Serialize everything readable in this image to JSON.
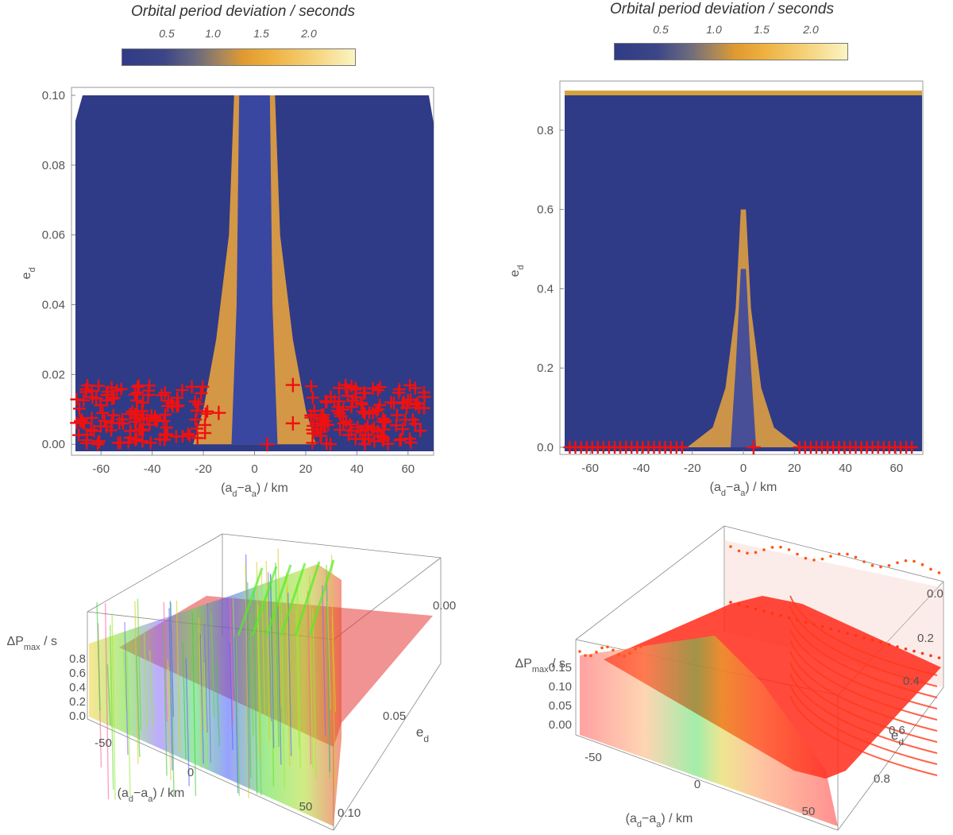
{
  "colors": {
    "low": "#2f3b86",
    "mid": "#e39d2f",
    "high": "#fbf4c2",
    "marker": "#ee1111"
  },
  "colorbar": {
    "title": "Orbital period deviation / seconds",
    "ticks": [
      "0.5",
      "1.0",
      "1.5",
      "2.0"
    ]
  },
  "chart_data": [
    {
      "type": "heatmap",
      "panel": "top-left",
      "title": "Orbital period deviation / seconds",
      "xlabel": "(a_d−a_a) / km",
      "ylabel": "e_d",
      "xlim": [
        -70,
        70
      ],
      "ylim": [
        -0.002,
        0.1
      ],
      "xticks": [
        "-60",
        "-40",
        "-20",
        "0",
        "20",
        "40",
        "60"
      ],
      "yticks": [
        "0.00",
        "0.02",
        "0.04",
        "0.06",
        "0.08",
        "0.10"
      ],
      "colorbar_ticks": [
        0.5,
        1.0,
        1.5,
        2.0
      ],
      "description_values": {
        "background_deviation_s": 0.3,
        "band_deviation_s": 1.7,
        "band_center_km": [
          -12,
          12
        ],
        "band_halfwidth_at_e0_km": 10,
        "band_halfwidth_at_e0_1_km": 3
      },
      "markers": {
        "symbol": "+",
        "left_x_range": [
          -70,
          -17
        ],
        "right_x_range": [
          22,
          68
        ],
        "e_range": [
          0.0,
          0.017
        ],
        "isolated": [
          [
            -14,
            0.009
          ],
          [
            15,
            0.017
          ],
          [
            15,
            0.006
          ],
          [
            5,
            0.0
          ]
        ]
      }
    },
    {
      "type": "heatmap",
      "panel": "top-right",
      "title": "Orbital period deviation / seconds",
      "xlabel": "(a_d−a_a) / km",
      "ylabel": "e_d",
      "xlim": [
        -70,
        70
      ],
      "ylim": [
        -0.01,
        0.9
      ],
      "xticks": [
        "-60",
        "-40",
        "-20",
        "0",
        "20",
        "40",
        "60"
      ],
      "yticks": [
        "0.0",
        "0.2",
        "0.4",
        "0.6",
        "0.8"
      ],
      "colorbar_ticks": [
        0.5,
        1.0,
        1.5,
        2.0
      ],
      "description_values": {
        "background_deviation_s": 0.3,
        "band_deviation_s": 1.6,
        "band_halfwidth_at_e0_km": 20,
        "band_apex_e": 0.5
      },
      "markers": {
        "symbol": "+",
        "left_x_range": [
          -68,
          -22
        ],
        "right_x_range": [
          22,
          68
        ],
        "e_range": [
          0.0,
          0.0
        ],
        "isolated": [
          [
            4,
            0.0
          ]
        ]
      }
    },
    {
      "type": "scatter",
      "panel": "bottom-left",
      "projection": "3d",
      "xlabel": "(a_d−a_a) / km",
      "ylabel": "e_d",
      "zlabel": "ΔP_max / s",
      "xticks": [
        "-50",
        "0",
        "50"
      ],
      "yticks": [
        "0.00",
        "0.05",
        "0.10"
      ],
      "zticks": [
        "0.0",
        "0.2",
        "0.4",
        "0.6",
        "0.8"
      ],
      "xlim": [
        -70,
        70
      ],
      "ylim": [
        0.0,
        0.1
      ],
      "zlim": [
        0.0,
        0.8
      ]
    },
    {
      "type": "scatter",
      "panel": "bottom-right",
      "projection": "3d",
      "xlabel": "(a_d−a_a) / km",
      "ylabel": "e_d",
      "zlabel": "ΔP_max / s",
      "xticks": [
        "-50",
        "0",
        "50"
      ],
      "yticks": [
        "0.0",
        "0.2",
        "0.4",
        "0.6",
        "0.8"
      ],
      "zticks": [
        "0.00",
        "0.05",
        "0.10",
        "0.15"
      ],
      "xlim": [
        -70,
        70
      ],
      "ylim": [
        0.0,
        0.9
      ],
      "zlim": [
        0.0,
        0.15
      ]
    }
  ]
}
